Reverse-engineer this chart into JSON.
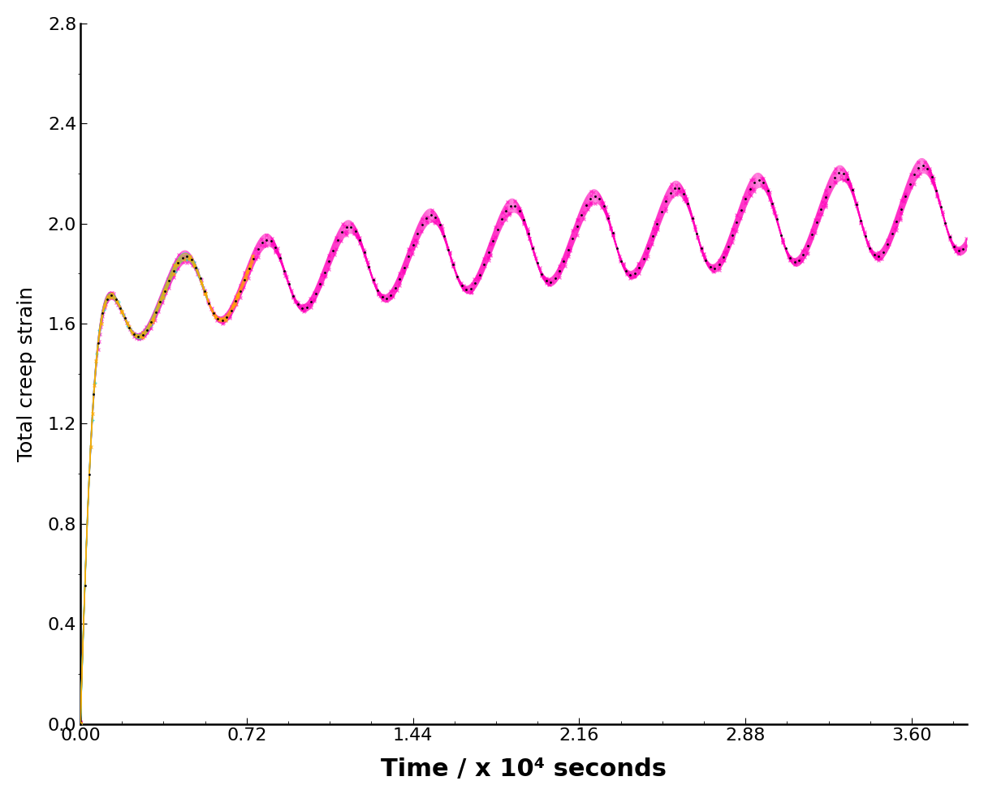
{
  "title": "",
  "xlabel": "Time / x 10⁴ seconds",
  "ylabel": "Total creep strain",
  "xlim": [
    0,
    3.84
  ],
  "ylim": [
    0,
    2.8
  ],
  "xticks": [
    0.0,
    0.72,
    1.44,
    2.16,
    2.88,
    3.6
  ],
  "yticks": [
    0.0,
    0.4,
    0.8,
    1.2,
    1.6,
    2.0,
    2.4,
    2.8
  ],
  "xlabel_fontsize": 22,
  "ylabel_fontsize": 18,
  "tick_fontsize": 16,
  "xlabel_fontweight": "bold",
  "background_color": "#ffffff",
  "line_color_black": "#000000",
  "line_color_magenta": "#ff00bb",
  "line_color_cyan": "#00dddd",
  "line_color_yellow": "#dddd00",
  "line_color_orange": "#ffaa00"
}
